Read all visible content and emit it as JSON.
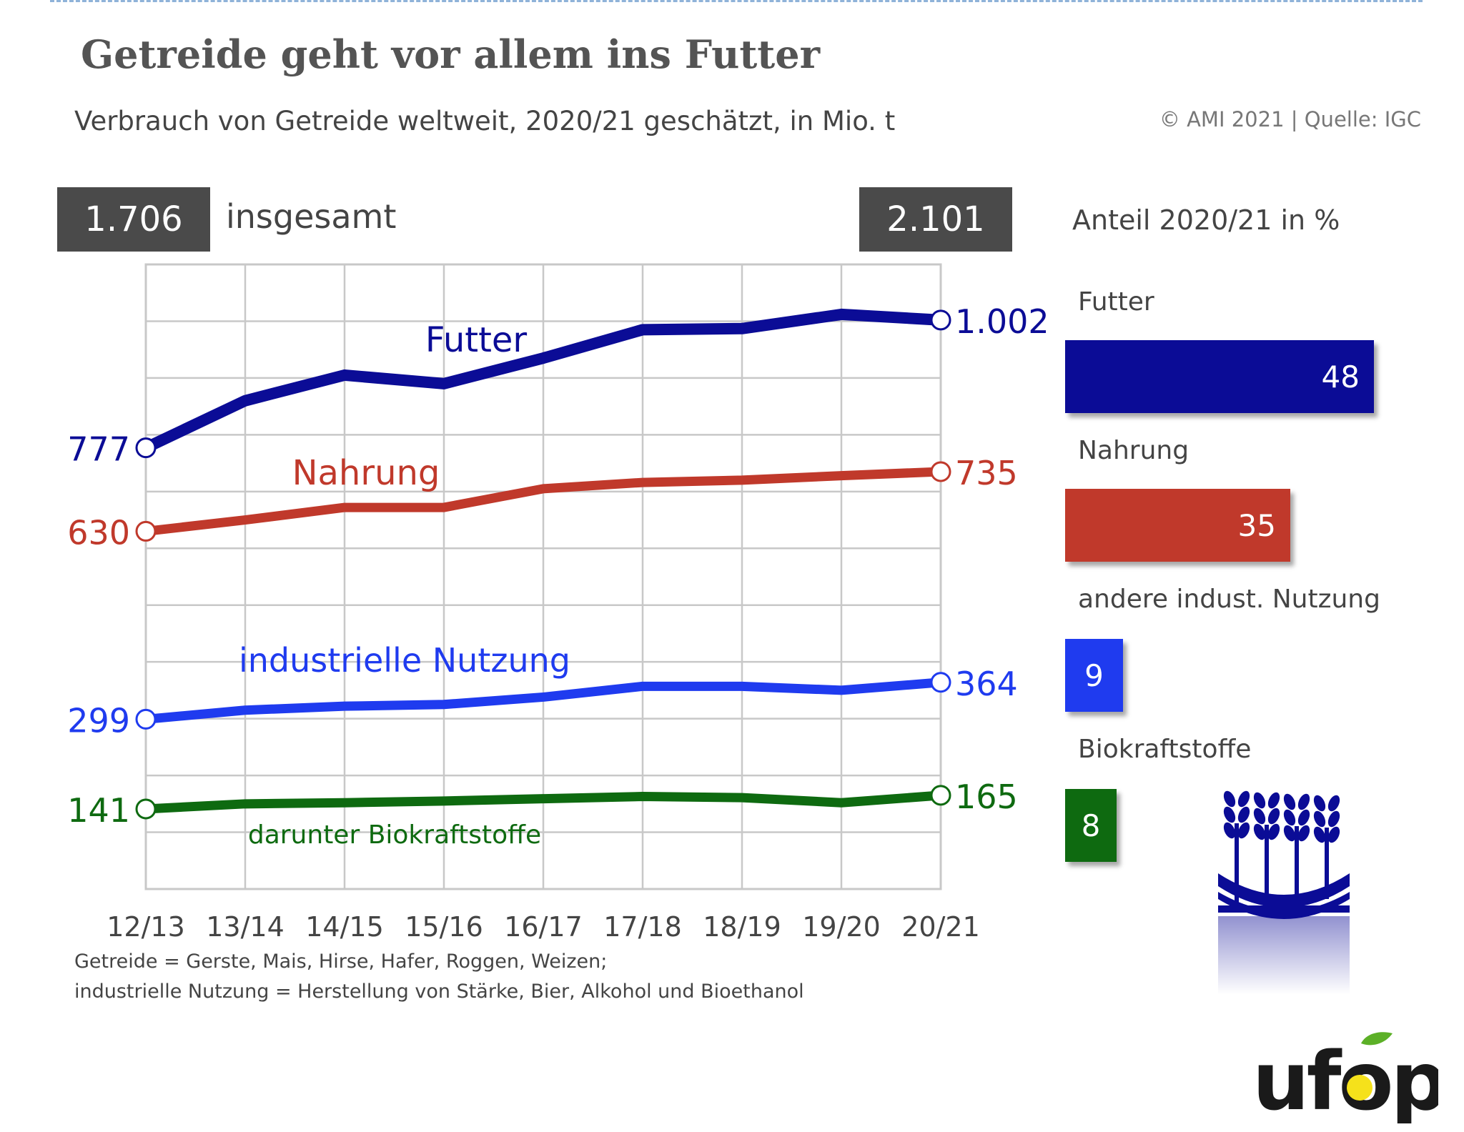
{
  "title": "Getreide geht vor allem ins Futter",
  "subtitle": "Verbrauch von Getreide weltweit, 2020/21 geschätzt, in Mio. t",
  "source": "© AMI 2021 | Quelle: IGC",
  "totals": {
    "start": "1.706",
    "end": "2.101",
    "label": "insgesamt"
  },
  "share": {
    "title": "Anteil 2020/21 in %",
    "bars": [
      {
        "label": "Futter",
        "value": 48,
        "color": "#0b0c96"
      },
      {
        "label": "Nahrung",
        "value": 35,
        "color": "#c0392b"
      },
      {
        "label": "andere indust. Nutzung",
        "value": 9,
        "color": "#1f3bef"
      },
      {
        "label": "Biokraftstoffe",
        "value": 8,
        "color": "#0e6a10"
      }
    ]
  },
  "footnotes": [
    "Getreide = Gerste, Mais, Hirse, Hafer, Roggen, Weizen;",
    "industrielle Nutzung = Herstellung von Stärke, Bier, Alkohol und Bioethanol"
  ],
  "logo_text": "ufop",
  "chart_data": {
    "type": "line",
    "x": [
      "12/13",
      "13/14",
      "14/15",
      "15/16",
      "16/17",
      "17/18",
      "18/19",
      "19/20",
      "20/21"
    ],
    "ylim": [
      0,
      1100
    ],
    "grid": true,
    "series": [
      {
        "name": "Futter",
        "color": "#0b0c96",
        "values": [
          777,
          860,
          905,
          890,
          935,
          985,
          987,
          1012,
          1002
        ],
        "start_label": "777",
        "end_label": "1.002"
      },
      {
        "name": "Nahrung",
        "color": "#c0392b",
        "values": [
          630,
          650,
          672,
          672,
          705,
          716,
          720,
          728,
          735
        ],
        "start_label": "630",
        "end_label": "735"
      },
      {
        "name": "industrielle Nutzung",
        "color": "#1f3bef",
        "values": [
          299,
          315,
          322,
          325,
          338,
          357,
          357,
          350,
          364
        ],
        "start_label": "299",
        "end_label": "364"
      },
      {
        "name": "darunter Biokraftstoffe",
        "color": "#0e6a10",
        "values": [
          141,
          150,
          152,
          155,
          159,
          163,
          161,
          152,
          165
        ],
        "start_label": "141",
        "end_label": "165"
      }
    ]
  }
}
